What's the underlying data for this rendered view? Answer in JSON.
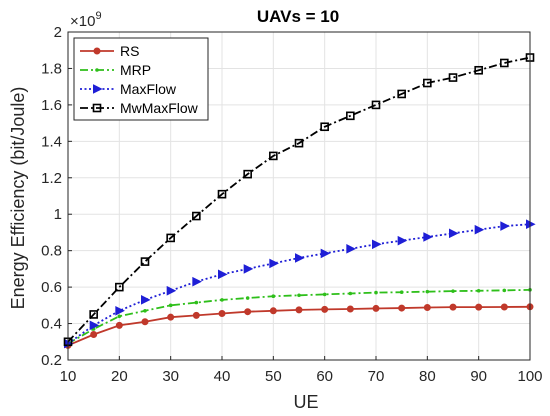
{
  "chart_data": {
    "type": "line",
    "title": "UAVs = 10",
    "xlabel": "UE",
    "ylabel": "Energy Efficiency (bit/Joule)",
    "y_multiplier": "×10",
    "y_exponent": "9",
    "xlim": [
      10,
      100
    ],
    "ylim": [
      0.2,
      2
    ],
    "xticks": [
      "10",
      "20",
      "30",
      "40",
      "50",
      "60",
      "70",
      "80",
      "90",
      "100"
    ],
    "yticks": [
      "0.2",
      "0.4",
      "0.6",
      "0.8",
      "1",
      "1.2",
      "1.4",
      "1.6",
      "1.8",
      "2"
    ],
    "grid": true,
    "legend_position": "top-left",
    "x": [
      10,
      15,
      20,
      25,
      30,
      35,
      40,
      45,
      50,
      55,
      60,
      65,
      70,
      75,
      80,
      85,
      90,
      95,
      100
    ],
    "series": [
      {
        "name": "RS",
        "color": "#c0392b",
        "marker": "circle",
        "dash": "solid",
        "values": [
          0.28,
          0.34,
          0.39,
          0.41,
          0.435,
          0.445,
          0.455,
          0.465,
          0.47,
          0.475,
          0.478,
          0.48,
          0.483,
          0.485,
          0.488,
          0.49,
          0.49,
          0.491,
          0.492
        ]
      },
      {
        "name": "MRP",
        "color": "#2ebf1a",
        "marker": "point",
        "dash": "dashdot",
        "values": [
          0.29,
          0.37,
          0.44,
          0.47,
          0.5,
          0.515,
          0.53,
          0.54,
          0.55,
          0.555,
          0.56,
          0.565,
          0.57,
          0.572,
          0.575,
          0.578,
          0.58,
          0.582,
          0.585
        ]
      },
      {
        "name": "MaxFlow",
        "color": "#1f1fd6",
        "marker": "triangle-right",
        "dash": "dotted",
        "values": [
          0.29,
          0.39,
          0.47,
          0.53,
          0.58,
          0.63,
          0.67,
          0.7,
          0.73,
          0.76,
          0.785,
          0.81,
          0.835,
          0.855,
          0.875,
          0.895,
          0.915,
          0.935,
          0.945
        ]
      },
      {
        "name": "MwMaxFlow",
        "color": "#000000",
        "marker": "square",
        "dash": "dashdot",
        "values": [
          0.3,
          0.45,
          0.6,
          0.74,
          0.87,
          0.99,
          1.11,
          1.22,
          1.32,
          1.39,
          1.48,
          1.54,
          1.6,
          1.66,
          1.72,
          1.75,
          1.79,
          1.83,
          1.86
        ]
      }
    ]
  }
}
